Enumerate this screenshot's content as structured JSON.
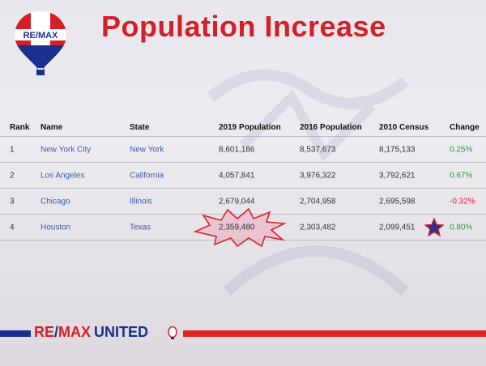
{
  "slide": {
    "title": "Population Increase",
    "logo_text": "RE/MAX"
  },
  "table": {
    "headers": {
      "rank": "Rank",
      "name": "Name",
      "state": "State",
      "pop2019": "2019 Population",
      "pop2016": "2016 Population",
      "census2010": "2010 Census",
      "change": "Change"
    },
    "rows": [
      {
        "rank": "1",
        "name": "New York City",
        "state": "New York",
        "pop2019": "8,601,186",
        "pop2016": "8,537,673",
        "census2010": "8,175,133",
        "change": "0.25%"
      },
      {
        "rank": "2",
        "name": "Los Angeles",
        "state": "California",
        "pop2019": "4,057,841",
        "pop2016": "3,976,322",
        "census2010": "3,792,621",
        "change": "0.67%"
      },
      {
        "rank": "3",
        "name": "Chicago",
        "state": "Illinois",
        "pop2019": "2,679,044",
        "pop2016": "2,704,958",
        "census2010": "2,695,598",
        "change": "-0.32%"
      },
      {
        "rank": "4",
        "name": "Houston",
        "state": "Texas",
        "pop2019": "2,359,480",
        "pop2016": "2,303,482",
        "census2010": "2,099,451",
        "change": "0.80%"
      }
    ]
  },
  "footer": {
    "brand_re": "RE",
    "brand_slash": "/",
    "brand_max": "MAX",
    "brand_united": "UNITED"
  },
  "colors": {
    "brand_red": "#d41f26",
    "brand_blue": "#1b2f8f",
    "positive": "#2e9a46",
    "negative": "#d9242a"
  }
}
